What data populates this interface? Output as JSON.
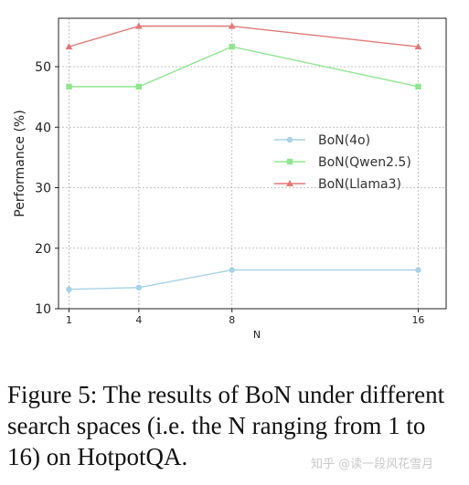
{
  "chart_data": {
    "type": "line",
    "x": [
      1,
      4,
      8,
      16
    ],
    "xlabel": "N",
    "ylabel": "Performance (%)",
    "ylim": [
      10,
      58
    ],
    "yticks": [
      10,
      20,
      30,
      40,
      50
    ],
    "grid": true,
    "legend_position": "center-right",
    "series": [
      {
        "name": "BoN(4o)",
        "values": [
          13.2,
          13.5,
          16.4,
          16.4
        ],
        "color": "#a8d2e6",
        "marker": "circle"
      },
      {
        "name": "BoN(Qwen2.5)",
        "values": [
          46.7,
          46.7,
          53.3,
          46.7
        ],
        "color": "#90e590",
        "marker": "square"
      },
      {
        "name": "BoN(Llama3)",
        "values": [
          53.3,
          56.7,
          56.7,
          53.3
        ],
        "color": "#e07a7a",
        "marker": "triangle"
      }
    ]
  },
  "caption": {
    "text": "Figure 5: The results of BoN under different search spaces (i.e. the N ranging from 1 to 16) on HotpotQA."
  },
  "watermark": "知乎 @读一段风花雪月"
}
